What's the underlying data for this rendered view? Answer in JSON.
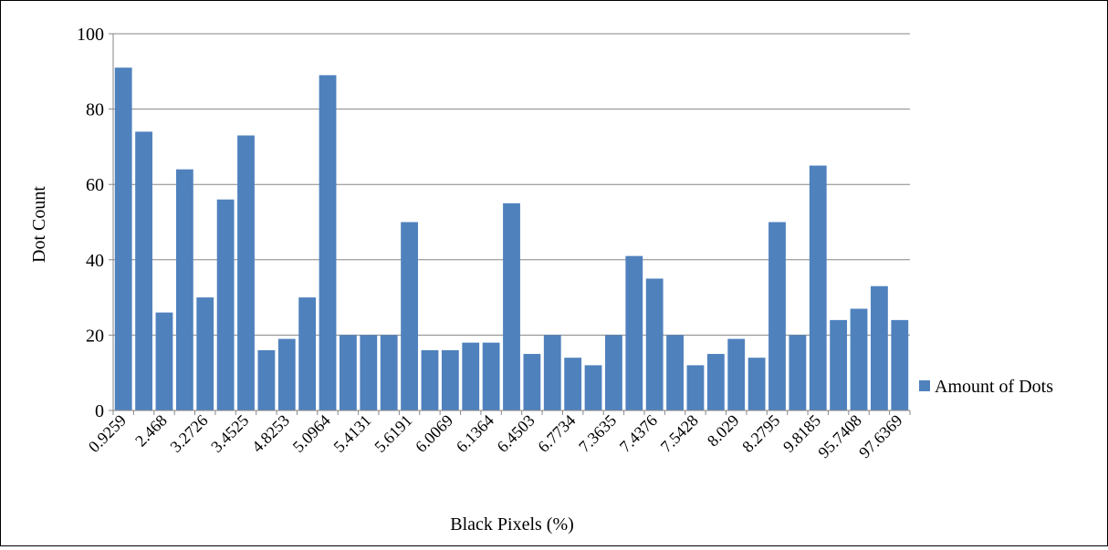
{
  "chart_data": {
    "type": "bar",
    "title": "",
    "xlabel": "Black Pixels (%)",
    "ylabel": "Dot Count",
    "ylim": [
      0,
      100
    ],
    "yticks": [
      0,
      20,
      40,
      60,
      80,
      100
    ],
    "grid": true,
    "legend_position": "right",
    "categories": [
      "0.9259",
      "",
      "2.468",
      "",
      "3.2726",
      "",
      "3.4525",
      "",
      "4.8253",
      "",
      "5.0964",
      "",
      "5.4131",
      "",
      "5.6191",
      "",
      "6.0069",
      "",
      "6.1364",
      "",
      "6.4503",
      "",
      "6.7734",
      "",
      "7.3635",
      "",
      "7.4376",
      "",
      "7.5428",
      "",
      "8.029",
      "",
      "8.2795",
      "",
      "9.8185",
      "",
      "95.7408",
      "",
      "97.6369"
    ],
    "series": [
      {
        "name": "Amount of Dots",
        "color": "#4f81bd",
        "values": [
          91,
          74,
          26,
          64,
          30,
          56,
          73,
          16,
          19,
          30,
          89,
          20,
          20,
          20,
          50,
          16,
          16,
          18,
          18,
          55,
          15,
          20,
          14,
          12,
          20,
          41,
          35,
          20,
          12,
          15,
          19,
          14,
          50,
          20,
          65,
          24,
          27,
          33,
          24
        ]
      }
    ]
  }
}
